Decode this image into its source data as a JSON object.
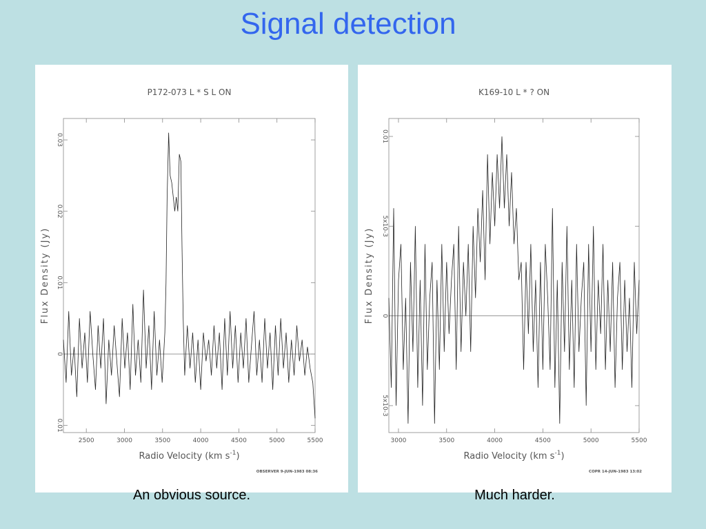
{
  "slide": {
    "title": "Signal detection",
    "caption_left": "An obvious source.",
    "caption_right": "Much harder."
  },
  "chart_data": [
    {
      "type": "line",
      "title": "P172-073 L * S L ON",
      "xlabel": "Radio Velocity (km s",
      "xlabel_sup": "-1",
      "xlabel_close": ")",
      "ylabel": "Flux Density (Jy)",
      "footer": "OBSERVER 9-JUN-1983 08:36",
      "xlim": [
        2200,
        5500
      ],
      "ylim": [
        -0.011,
        0.033
      ],
      "xticks": [
        2500,
        3000,
        3500,
        4000,
        4500,
        5000,
        5500
      ],
      "xtick_labels": [
        "2500",
        "3000",
        "3500",
        "4000",
        "4500",
        "5000",
        "5500"
      ],
      "yticks": [
        -0.01,
        0,
        0.01,
        0.02,
        0.03
      ],
      "ytick_labels": [
        "0.01",
        "0",
        "0.01",
        "0.02",
        "0.03"
      ],
      "zero_line": true,
      "series": [
        {
          "x": [
            2200,
            2235,
            2270,
            2305,
            2340,
            2375,
            2410,
            2445,
            2480,
            2515,
            2550,
            2585,
            2620,
            2655,
            2690,
            2725,
            2760,
            2795,
            2830,
            2865,
            2900,
            2935,
            2970,
            3005,
            3040,
            3075,
            3110,
            3145,
            3180,
            3215,
            3250,
            3285,
            3320,
            3355,
            3390,
            3425,
            3460,
            3495,
            3530,
            3545,
            3560,
            3580,
            3600,
            3620,
            3640,
            3660,
            3680,
            3700,
            3720,
            3740,
            3755,
            3770,
            3790,
            3825,
            3860,
            3895,
            3930,
            3965,
            4000,
            4035,
            4070,
            4105,
            4140,
            4175,
            4210,
            4245,
            4280,
            4315,
            4350,
            4385,
            4420,
            4455,
            4490,
            4525,
            4560,
            4595,
            4630,
            4665,
            4700,
            4735,
            4770,
            4805,
            4840,
            4875,
            4910,
            4945,
            4980,
            5015,
            5050,
            5085,
            5120,
            5155,
            5190,
            5225,
            5260,
            5295,
            5330,
            5365,
            5400,
            5435,
            5470,
            5500
          ],
          "y": [
            0.002,
            -0.004,
            0.006,
            -0.003,
            0.001,
            -0.006,
            0.005,
            -0.002,
            0.003,
            -0.004,
            0.006,
            0.0,
            -0.005,
            0.004,
            -0.002,
            0.005,
            -0.007,
            0.002,
            -0.003,
            0.004,
            -0.001,
            -0.006,
            0.005,
            -0.002,
            0.003,
            -0.005,
            0.007,
            -0.003,
            0.002,
            -0.004,
            0.009,
            -0.002,
            0.004,
            -0.005,
            0.006,
            -0.003,
            0.002,
            -0.004,
            0.003,
            0.01,
            0.022,
            0.031,
            0.025,
            0.024,
            0.022,
            0.02,
            0.022,
            0.02,
            0.028,
            0.027,
            0.015,
            0.005,
            -0.003,
            0.004,
            -0.002,
            0.003,
            -0.004,
            0.002,
            -0.005,
            0.003,
            -0.001,
            0.002,
            -0.003,
            0.004,
            -0.002,
            0.003,
            -0.005,
            0.005,
            -0.003,
            0.006,
            -0.002,
            0.004,
            -0.004,
            0.003,
            -0.002,
            0.005,
            -0.004,
            0.001,
            0.006,
            -0.003,
            0.002,
            -0.004,
            0.005,
            -0.002,
            0.003,
            -0.005,
            0.004,
            -0.003,
            0.005,
            -0.002,
            0.003,
            -0.004,
            0.002,
            -0.003,
            0.004,
            -0.001,
            0.002,
            -0.003,
            0.001,
            -0.002,
            -0.004,
            -0.009
          ]
        }
      ]
    },
    {
      "type": "line",
      "title": "K169-10 L * ? ON",
      "xlabel": "Radio Velocity (km s",
      "xlabel_sup": "-1",
      "xlabel_close": ")",
      "ylabel": "Flux Density (Jy)",
      "footer": "COPR 14-JUN-1983 13:02",
      "xlim": [
        2900,
        5500
      ],
      "ylim": [
        -0.0065,
        0.011
      ],
      "xticks": [
        3000,
        3500,
        4000,
        4500,
        5000,
        5500
      ],
      "xtick_labels": [
        "3000",
        "3500",
        "4000",
        "4500",
        "5000",
        "5500"
      ],
      "yticks": [
        -0.005,
        0,
        0.005,
        0.01
      ],
      "ytick_labels": [
        "5x10-3",
        "0",
        "5x10-3",
        "0.01"
      ],
      "zero_line": true,
      "series": [
        {
          "x": [
            2900,
            2925,
            2950,
            2975,
            3000,
            3025,
            3050,
            3075,
            3100,
            3125,
            3150,
            3175,
            3200,
            3225,
            3250,
            3275,
            3300,
            3325,
            3350,
            3375,
            3400,
            3425,
            3450,
            3475,
            3500,
            3525,
            3550,
            3575,
            3600,
            3625,
            3650,
            3675,
            3700,
            3725,
            3750,
            3775,
            3800,
            3825,
            3850,
            3875,
            3900,
            3925,
            3950,
            3975,
            4000,
            4025,
            4050,
            4075,
            4100,
            4125,
            4150,
            4175,
            4200,
            4225,
            4250,
            4275,
            4300,
            4325,
            4350,
            4375,
            4400,
            4425,
            4450,
            4475,
            4500,
            4525,
            4550,
            4575,
            4600,
            4625,
            4650,
            4675,
            4700,
            4725,
            4750,
            4775,
            4800,
            4825,
            4850,
            4875,
            4900,
            4925,
            4950,
            4975,
            5000,
            5025,
            5050,
            5075,
            5100,
            5125,
            5150,
            5175,
            5200,
            5225,
            5250,
            5275,
            5300,
            5325,
            5350,
            5375,
            5400,
            5425,
            5450,
            5475,
            5500
          ],
          "y": [
            0.001,
            -0.004,
            0.006,
            -0.005,
            0.002,
            0.004,
            -0.003,
            0.001,
            -0.006,
            0.003,
            -0.002,
            0.005,
            -0.004,
            0.002,
            -0.005,
            0.004,
            -0.003,
            0.001,
            0.003,
            -0.006,
            0.002,
            -0.003,
            0.004,
            -0.002,
            0.003,
            -0.001,
            0.002,
            0.004,
            -0.003,
            0.005,
            -0.002,
            0.003,
            0.0,
            0.004,
            -0.002,
            0.005,
            0.001,
            0.006,
            0.003,
            0.007,
            0.002,
            0.009,
            0.004,
            0.008,
            0.005,
            0.009,
            0.006,
            0.01,
            0.006,
            0.009,
            0.005,
            0.008,
            0.004,
            0.006,
            0.002,
            0.003,
            -0.003,
            0.003,
            -0.001,
            0.004,
            -0.002,
            0.002,
            -0.004,
            0.003,
            -0.003,
            0.004,
            0.001,
            -0.003,
            0.006,
            -0.004,
            0.002,
            -0.006,
            0.003,
            -0.002,
            0.005,
            -0.003,
            0.002,
            -0.004,
            0.004,
            -0.002,
            0.001,
            0.003,
            -0.005,
            0.004,
            -0.002,
            0.005,
            -0.003,
            0.002,
            -0.001,
            0.004,
            -0.003,
            0.002,
            -0.002,
            0.003,
            -0.004,
            0.001,
            0.003,
            -0.003,
            0.002,
            -0.002,
            0.001,
            -0.004,
            0.003,
            -0.001,
            0.002
          ]
        }
      ]
    }
  ]
}
